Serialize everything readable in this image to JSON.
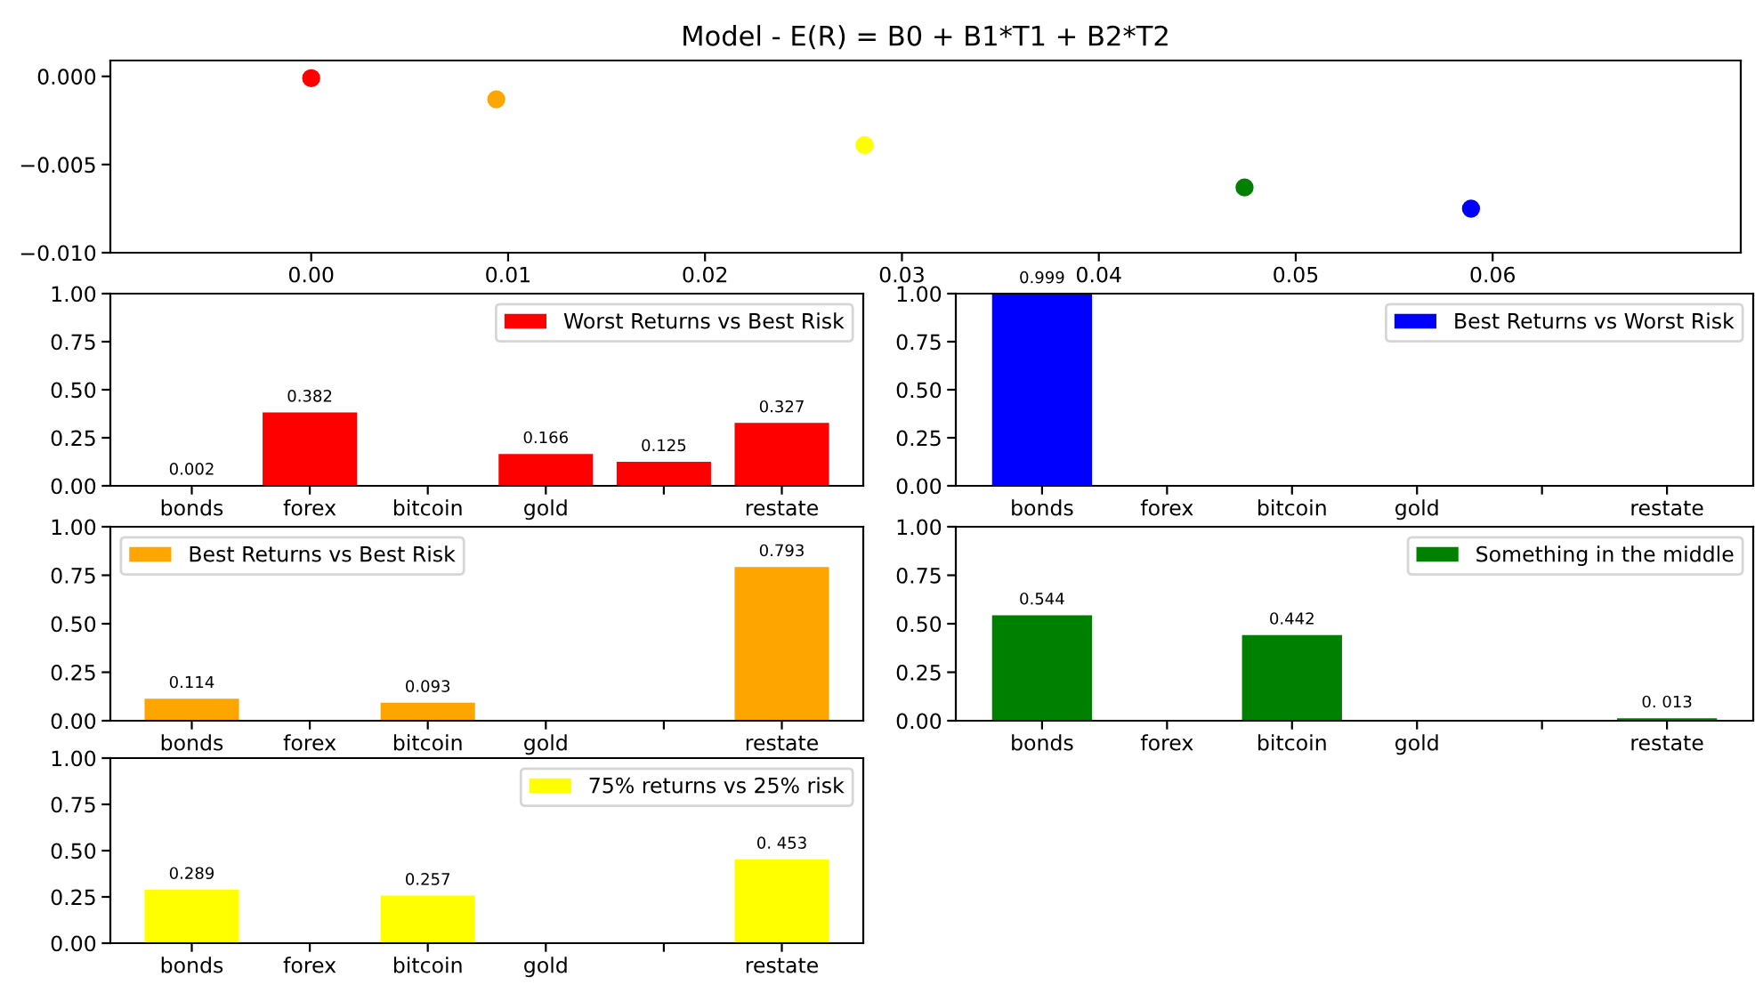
{
  "chart_data": [
    {
      "type": "scatter",
      "title": "Model - E(R) = B0 + B1*T1 + B2*T2",
      "xlim": [
        -0.0102,
        0.0726
      ],
      "ylim": [
        -0.01,
        0.0009
      ],
      "xticks": [
        {
          "value": 0,
          "label": "0.00"
        },
        {
          "value": 0.01,
          "label": "0.01"
        },
        {
          "value": 0.02,
          "label": "0.02"
        },
        {
          "value": 0.03,
          "label": "0.03"
        },
        {
          "value": 0.04,
          "label": "0.04"
        },
        {
          "value": 0.05,
          "label": "0.05"
        },
        {
          "value": 0.06,
          "label": "0.06"
        }
      ],
      "yticks": [
        {
          "value": 0,
          "label": "0.000"
        },
        {
          "value": -0.005,
          "label": "−0.005"
        },
        {
          "value": -0.01,
          "label": "−0.010"
        }
      ],
      "series": [
        {
          "x": [
            0.0,
            0.0094,
            0.0281,
            0.0474,
            0.0589
          ],
          "values": [
            -0.0001,
            -0.0013,
            -0.0039,
            -0.0063,
            -0.0075
          ],
          "colors": [
            "#ff0000",
            "#ffa500",
            "#ffff00",
            "#008000",
            "#0000ff"
          ]
        }
      ],
      "marker": "circle"
    },
    {
      "type": "bar",
      "categories": [
        "bonds",
        "forex",
        "bitcoin",
        "gold",
        null,
        "restate"
      ],
      "ylim": [
        0,
        1
      ],
      "yticks": [
        {
          "value": 0,
          "label": "0.00"
        },
        {
          "value": 0.25,
          "label": "0.25"
        },
        {
          "value": 0.5,
          "label": "0.50"
        },
        {
          "value": 0.75,
          "label": "0.75"
        },
        {
          "value": 1,
          "label": "1.00"
        }
      ],
      "legend": "top right",
      "series": [
        {
          "name": "Worst Returns vs Best Risk",
          "color": "#ff0000",
          "values": [
            0.002,
            0.382,
            0,
            0.166,
            0.125,
            0.327
          ],
          "value_labels": [
            "0.002",
            "0.382",
            null,
            "0.166",
            "0.125",
            "0.327"
          ]
        }
      ]
    },
    {
      "type": "bar",
      "categories": [
        "bonds",
        "forex",
        "bitcoin",
        "gold",
        null,
        "restate"
      ],
      "ylim": [
        0,
        1
      ],
      "yticks": [
        {
          "value": 0,
          "label": "0.00"
        },
        {
          "value": 0.25,
          "label": "0.25"
        },
        {
          "value": 0.5,
          "label": "0.50"
        },
        {
          "value": 0.75,
          "label": "0.75"
        },
        {
          "value": 1,
          "label": "1.00"
        }
      ],
      "legend": "top right",
      "series": [
        {
          "name": "Best Returns vs Worst Risk",
          "color": "#0000ff",
          "values": [
            0.999,
            0,
            0,
            0,
            0,
            0
          ],
          "value_labels": [
            "0.999",
            null,
            null,
            null,
            null,
            null
          ]
        }
      ]
    },
    {
      "type": "bar",
      "categories": [
        "bonds",
        "forex",
        "bitcoin",
        "gold",
        null,
        "restate"
      ],
      "ylim": [
        0,
        1
      ],
      "yticks": [
        {
          "value": 0,
          "label": "0.00"
        },
        {
          "value": 0.25,
          "label": "0.25"
        },
        {
          "value": 0.5,
          "label": "0.50"
        },
        {
          "value": 0.75,
          "label": "0.75"
        },
        {
          "value": 1,
          "label": "1.00"
        }
      ],
      "legend": "top left",
      "series": [
        {
          "name": "Best Returns vs Best Risk",
          "color": "#ffa500",
          "values": [
            0.114,
            0,
            0.093,
            0,
            0,
            0.793
          ],
          "value_labels": [
            "0.114",
            null,
            "0.093",
            null,
            null,
            "0.793"
          ]
        }
      ]
    },
    {
      "type": "bar",
      "categories": [
        "bonds",
        "forex",
        "bitcoin",
        "gold",
        null,
        "restate"
      ],
      "ylim": [
        0,
        1
      ],
      "yticks": [
        {
          "value": 0,
          "label": "0.00"
        },
        {
          "value": 0.25,
          "label": "0.25"
        },
        {
          "value": 0.5,
          "label": "0.50"
        },
        {
          "value": 0.75,
          "label": "0.75"
        },
        {
          "value": 1,
          "label": "1.00"
        }
      ],
      "legend": "top right",
      "series": [
        {
          "name": "Something in the middle",
          "color": "#008000",
          "values": [
            0.544,
            0,
            0.442,
            0,
            0,
            0.013
          ],
          "value_labels": [
            "0.544",
            null,
            "0.442",
            null,
            null,
            "0. 013"
          ]
        }
      ]
    },
    {
      "type": "bar",
      "categories": [
        "bonds",
        "forex",
        "bitcoin",
        "gold",
        null,
        "restate"
      ],
      "ylim": [
        0,
        1
      ],
      "yticks": [
        {
          "value": 0,
          "label": "0.00"
        },
        {
          "value": 0.25,
          "label": "0.25"
        },
        {
          "value": 0.5,
          "label": "0.50"
        },
        {
          "value": 0.75,
          "label": "0.75"
        },
        {
          "value": 1,
          "label": "1.00"
        }
      ],
      "legend": "top right",
      "series": [
        {
          "name": "75% returns vs 25% risk",
          "color": "#ffff00",
          "values": [
            0.289,
            0,
            0.257,
            0,
            0,
            0.453
          ],
          "value_labels": [
            "0.289",
            null,
            "0.257",
            null,
            null,
            "0. 453"
          ]
        }
      ]
    }
  ]
}
